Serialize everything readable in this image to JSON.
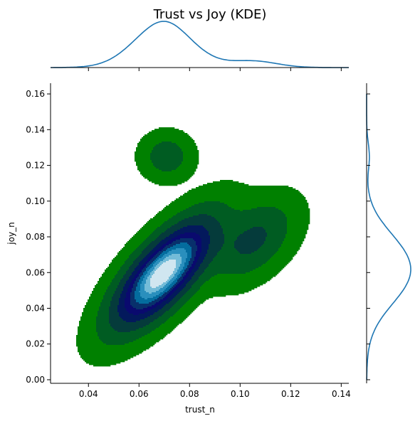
{
  "chart_data": {
    "type": "kde-joint",
    "title": "Trust vs Joy (KDE)",
    "xlabel": "trust_n",
    "ylabel": "joy_n",
    "xlim": [
      0.025,
      0.143
    ],
    "ylim": [
      -0.002,
      0.166
    ],
    "x_ticks": [
      0.04,
      0.06,
      0.08,
      0.1,
      0.12,
      0.14
    ],
    "x_tick_labels": [
      "0.04",
      "0.06",
      "0.08",
      "0.10",
      "0.12",
      "0.14"
    ],
    "y_ticks": [
      0.0,
      0.02,
      0.04,
      0.06,
      0.08,
      0.1,
      0.12,
      0.14,
      0.16
    ],
    "y_tick_labels": [
      "0.00",
      "0.02",
      "0.04",
      "0.06",
      "0.08",
      "0.10",
      "0.12",
      "0.14",
      "0.16"
    ],
    "grid": false,
    "colormap": [
      "#008000",
      "#005c22",
      "#053b3b",
      "#03195c",
      "#0a0a6e",
      "#08306b",
      "#046c9e",
      "#2a8fbd",
      "#74bcd8",
      "#d0e6f0"
    ],
    "density_components": [
      {
        "x": 0.0695,
        "y": 0.0595,
        "sx": 0.0115,
        "sy": 0.0175,
        "rho": 0.72,
        "w": 1.0
      },
      {
        "x": 0.105,
        "y": 0.078,
        "sx": 0.0095,
        "sy": 0.013,
        "rho": 0.45,
        "w": 0.2
      },
      {
        "x": 0.071,
        "y": 0.125,
        "sx": 0.0058,
        "sy": 0.0075,
        "rho": 0.0,
        "w": 0.13
      }
    ],
    "marginal_x": {
      "x": [
        0.025,
        0.143
      ],
      "color": "#1f77b4"
    },
    "marginal_y": {
      "y": [
        0.0,
        0.16
      ],
      "color": "#1f77b4"
    }
  }
}
